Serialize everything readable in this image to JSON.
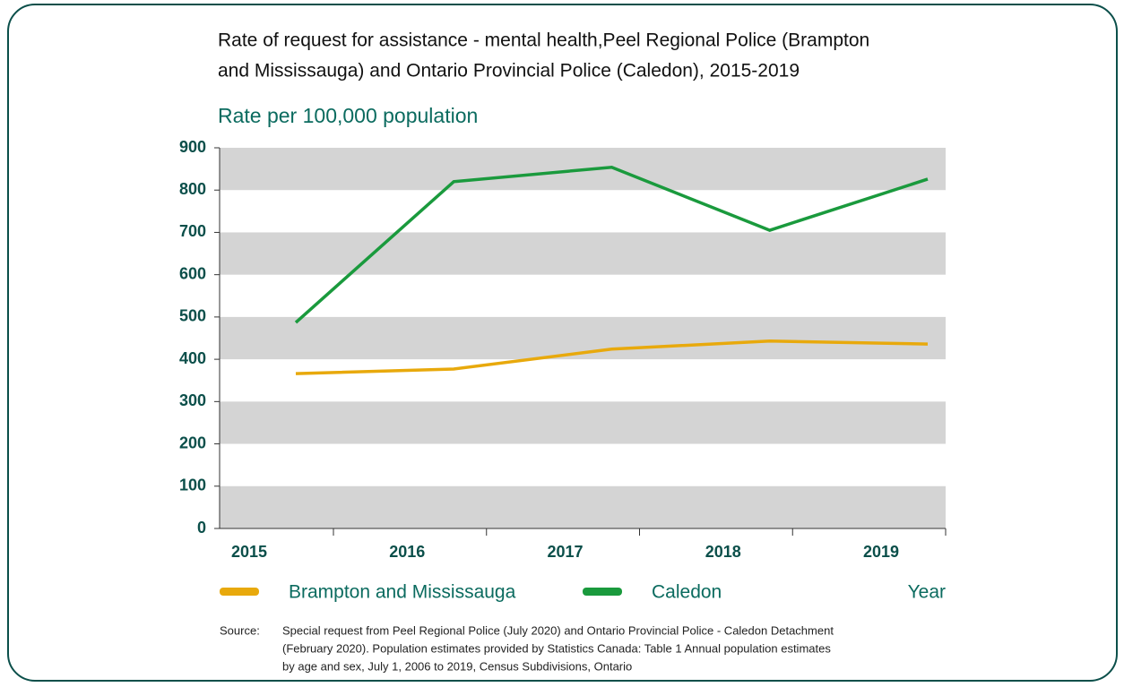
{
  "chart_data": {
    "type": "line",
    "title": [
      "Rate of request for assistance - mental health,Peel Regional Police (Brampton",
      "and Mississauga) and Ontario Provincial Police (Caledon), 2015-2019"
    ],
    "subtitle": "Rate per 100,000 population",
    "x_label": "Year",
    "categories": [
      "2015",
      "2016",
      "2017",
      "2018",
      "2019"
    ],
    "series": [
      {
        "name": "Brampton and Mississauga",
        "color": "#e8a90c",
        "values": [
          366,
          377,
          424,
          443,
          436
        ]
      },
      {
        "name": "Caledon",
        "color": "#1a9a3d",
        "values": [
          487,
          820,
          854,
          705,
          826
        ]
      }
    ],
    "ylim": [
      0,
      900
    ],
    "yticks": [
      0,
      100,
      200,
      300,
      400,
      500,
      600,
      700,
      800,
      900
    ],
    "bands": true,
    "source_label": "Source:",
    "source": [
      "Special request from Peel Regional Police (July 2020) and Ontario Provincial Police - Caledon Detachment",
      "(February 2020). Population estimates provided by Statistics Canada: Table 1 Annual population estimates",
      "by age and sex, July 1, 2006 to 2019, Census Subdivisions, Ontario"
    ]
  }
}
